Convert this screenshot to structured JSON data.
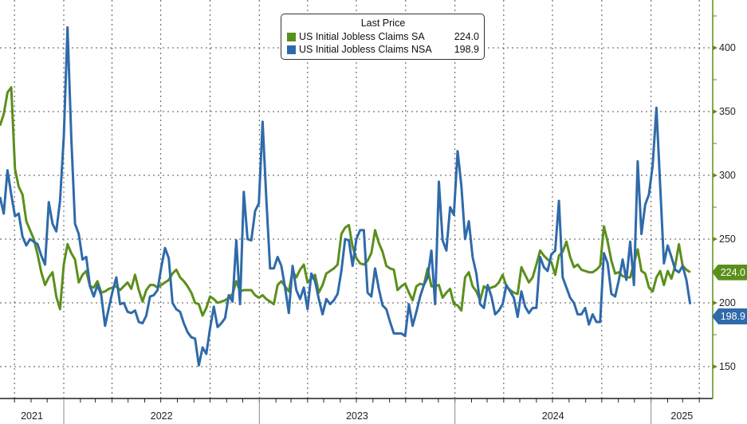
{
  "legend": {
    "title": "Last Price",
    "items": [
      {
        "name": "US Initial Jobless Claims SA",
        "value": "224.0",
        "color": "#5b8f1b"
      },
      {
        "name": "US Initial Jobless Claims NSA",
        "value": "198.9",
        "color": "#2f6aaa"
      }
    ]
  },
  "chart_data": {
    "type": "line",
    "title": "",
    "xlabel": "",
    "ylabel": "",
    "y_axis_position": "right",
    "ylim": [
      125,
      437.5
    ],
    "y_ticks": [
      150,
      200,
      250,
      300,
      350,
      400
    ],
    "x_tick_labels": [
      "2021",
      "2022",
      "2023",
      "2024",
      "2025"
    ],
    "grid": true,
    "legend_position": "top-center",
    "last_value_tags": [
      "224.0",
      "198.9"
    ],
    "x": [
      "2021-09-04",
      "2021-09-11",
      "2021-09-18",
      "2021-09-25",
      "2021-10-02",
      "2021-10-09",
      "2021-10-16",
      "2021-10-23",
      "2021-10-30",
      "2021-11-06",
      "2021-11-13",
      "2021-11-20",
      "2021-11-27",
      "2021-12-04",
      "2021-12-11",
      "2021-12-18",
      "2021-12-25",
      "2022-01-01",
      "2022-01-08",
      "2022-01-15",
      "2022-01-22",
      "2022-01-29",
      "2022-02-05",
      "2022-02-12",
      "2022-02-19",
      "2022-02-26",
      "2022-03-05",
      "2022-03-12",
      "2022-03-19",
      "2022-03-26",
      "2022-04-02",
      "2022-04-09",
      "2022-04-16",
      "2022-04-23",
      "2022-04-30",
      "2022-05-07",
      "2022-05-14",
      "2022-05-21",
      "2022-05-28",
      "2022-06-04",
      "2022-06-11",
      "2022-06-18",
      "2022-06-25",
      "2022-07-02",
      "2022-07-09",
      "2022-07-16",
      "2022-07-23",
      "2022-07-30",
      "2022-08-06",
      "2022-08-13",
      "2022-08-20",
      "2022-08-27",
      "2022-09-03",
      "2022-09-10",
      "2022-09-17",
      "2022-09-24",
      "2022-10-01",
      "2022-10-08",
      "2022-10-15",
      "2022-10-22",
      "2022-10-29",
      "2022-11-05",
      "2022-11-12",
      "2022-11-19",
      "2022-11-26",
      "2022-12-03",
      "2022-12-10",
      "2022-12-17",
      "2022-12-24",
      "2022-12-31",
      "2023-01-07",
      "2023-01-14",
      "2023-01-21",
      "2023-01-28",
      "2023-02-04",
      "2023-02-11",
      "2023-02-18",
      "2023-02-25",
      "2023-03-04",
      "2023-03-11",
      "2023-03-18",
      "2023-03-25",
      "2023-04-01",
      "2023-04-08",
      "2023-04-15",
      "2023-04-22",
      "2023-04-29",
      "2023-05-06",
      "2023-05-13",
      "2023-05-20",
      "2023-05-27",
      "2023-06-03",
      "2023-06-10",
      "2023-06-17",
      "2023-06-24",
      "2023-07-01",
      "2023-07-08",
      "2023-07-15",
      "2023-07-22",
      "2023-07-29",
      "2023-08-05",
      "2023-08-12",
      "2023-08-19",
      "2023-08-26",
      "2023-09-02",
      "2023-09-09",
      "2023-09-16",
      "2023-09-23",
      "2023-09-30",
      "2023-10-07",
      "2023-10-14",
      "2023-10-21",
      "2023-10-28",
      "2023-11-04",
      "2023-11-11",
      "2023-11-18",
      "2023-11-25",
      "2023-12-02",
      "2023-12-09",
      "2023-12-16",
      "2023-12-23",
      "2023-12-30",
      "2024-01-06",
      "2024-01-13",
      "2024-01-20",
      "2024-01-27",
      "2024-02-03",
      "2024-02-10",
      "2024-02-17",
      "2024-02-24",
      "2024-03-02",
      "2024-03-09",
      "2024-03-16",
      "2024-03-23",
      "2024-03-30",
      "2024-04-06",
      "2024-04-13",
      "2024-04-20",
      "2024-04-27",
      "2024-05-04",
      "2024-05-11",
      "2024-05-18",
      "2024-05-25",
      "2024-06-01",
      "2024-06-08",
      "2024-06-15",
      "2024-06-22",
      "2024-06-29",
      "2024-07-06",
      "2024-07-13",
      "2024-07-20",
      "2024-07-27",
      "2024-08-03",
      "2024-08-10",
      "2024-08-17",
      "2024-08-24",
      "2024-08-31",
      "2024-09-07",
      "2024-09-14",
      "2024-09-21",
      "2024-09-28",
      "2024-10-05",
      "2024-10-12",
      "2024-10-19",
      "2024-10-26",
      "2024-11-02",
      "2024-11-09",
      "2024-11-16",
      "2024-11-23",
      "2024-11-30",
      "2024-12-07",
      "2024-12-14",
      "2024-12-21",
      "2024-12-28",
      "2025-01-04",
      "2025-01-11",
      "2025-01-18",
      "2025-01-25",
      "2025-02-01",
      "2025-02-08",
      "2025-02-15",
      "2025-02-22",
      "2025-03-01",
      "2025-03-08",
      "2025-03-15"
    ],
    "series": [
      {
        "name": "US Initial Jobless Claims SA",
        "color": "#5b8f1b",
        "values": [
          339,
          348,
          365,
          369,
          305,
          291,
          285,
          264,
          257,
          250,
          238,
          224,
          214,
          220,
          224,
          205,
          195,
          230,
          246,
          239,
          234,
          216,
          222,
          225,
          213,
          212,
          217,
          208,
          209,
          211,
          212,
          213,
          210,
          213,
          216,
          211,
          222,
          210,
          201,
          210,
          214,
          214,
          212,
          214,
          216,
          218,
          223,
          226,
          220,
          217,
          213,
          208,
          200,
          199,
          190,
          196,
          205,
          203,
          200,
          201,
          202,
          204,
          207,
          217,
          209,
          210,
          210,
          210,
          206,
          204,
          206,
          203,
          201,
          199,
          214,
          217,
          213,
          209,
          225,
          220,
          226,
          230,
          216,
          219,
          222,
          208,
          214,
          223,
          225,
          227,
          230,
          254,
          259,
          261,
          244,
          235,
          231,
          230,
          233,
          239,
          257,
          247,
          240,
          229,
          227,
          226,
          210,
          213,
          215,
          208,
          202,
          213,
          215,
          214,
          227,
          213,
          213,
          214,
          204,
          208,
          211,
          199,
          198,
          194,
          220,
          224,
          213,
          209,
          202,
          213,
          211,
          212,
          213,
          216,
          222,
          213,
          210,
          208,
          207,
          228,
          222,
          216,
          220,
          230,
          241,
          237,
          234,
          232,
          222,
          237,
          240,
          248,
          236,
          228,
          230,
          226,
          225,
          224,
          224,
          226,
          229,
          260,
          248,
          233,
          223,
          224,
          221,
          220,
          220,
          231,
          242,
          225,
          223,
          212,
          209,
          220,
          225,
          214,
          225,
          219,
          229,
          246,
          229,
          226,
          224
        ]
      },
      {
        "name": "US Initial Jobless Claims NSA",
        "color": "#2f6aaa",
        "values": [
          283,
          270,
          304,
          285,
          268,
          270,
          252,
          245,
          250,
          248,
          246,
          237,
          230,
          279,
          262,
          256,
          280,
          330,
          416,
          330,
          262,
          254,
          234,
          236,
          213,
          205,
          214,
          206,
          182,
          196,
          209,
          220,
          199,
          200,
          193,
          192,
          194,
          185,
          184,
          190,
          205,
          206,
          210,
          228,
          243,
          235,
          200,
          195,
          193,
          184,
          177,
          173,
          172,
          151,
          165,
          160,
          180,
          197,
          181,
          184,
          188,
          206,
          201,
          249,
          199,
          287,
          250,
          249,
          272,
          278,
          342,
          281,
          227,
          227,
          236,
          229,
          212,
          192,
          229,
          210,
          203,
          212,
          195,
          223,
          217,
          203,
          191,
          203,
          199,
          202,
          207,
          225,
          250,
          249,
          229,
          250,
          257,
          257,
          208,
          205,
          227,
          211,
          198,
          195,
          185,
          176,
          176,
          176,
          174,
          199,
          182,
          193,
          205,
          214,
          220,
          241,
          199,
          295,
          249,
          241,
          275,
          269,
          319,
          292,
          250,
          264,
          236,
          223,
          199,
          196,
          214,
          205,
          191,
          194,
          199,
          214,
          209,
          204,
          189,
          209,
          197,
          192,
          196,
          196,
          236,
          228,
          225,
          238,
          241,
          280,
          220,
          212,
          204,
          200,
          191,
          191,
          196,
          183,
          191,
          185,
          185,
          239,
          231,
          207,
          205,
          218,
          234,
          218,
          248,
          214,
          311,
          254,
          277,
          285,
          308,
          353,
          292,
          231,
          245,
          236,
          226,
          224,
          229,
          218,
          199
        ]
      }
    ]
  }
}
